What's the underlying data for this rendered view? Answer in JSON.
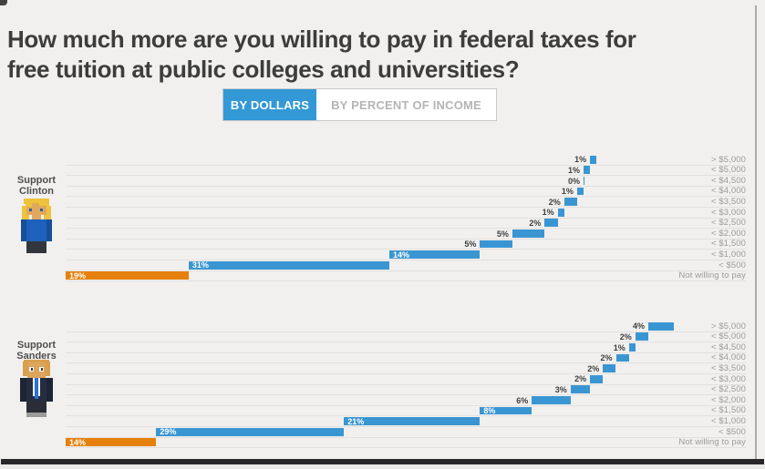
{
  "page": {
    "title": "How much more are you willing to pay in federal taxes for free tuition at public colleges and universities?",
    "title_lines": [
      "How much more are you willing to pay in federal taxes for",
      "free tuition at public colleges and universities?"
    ]
  },
  "toggle": {
    "by_dollars_label": "BY DOLLARS",
    "by_percent_label": "BY PERCENT OF INCOME",
    "active": "BY DOLLARS"
  },
  "colors": {
    "background": "#f1f0ee",
    "bar_blue": "#3a96d2",
    "bar_orange": "#e6810d",
    "toggle_blue": "#3399d6",
    "gridline": "#e2e1df",
    "category_label": "#9b9b9b",
    "title_text": "#3d3d3d",
    "footer_bar": "#28282a"
  },
  "chart_data": {
    "type": "bar",
    "subtype": "horizontal-waterfall",
    "title": "How much more are you willing to pay in federal taxes for free tuition at public colleges and universities?",
    "value_suffix": "%",
    "xlim": [
      0,
      105
    ],
    "grid": true,
    "legend_position": "left",
    "highlight_category": "Not willing to pay",
    "categories": [
      "> $5,000",
      "< $5,000",
      "< $4,500",
      "< $4,000",
      "< $3,500",
      "< $3,000",
      "< $2,500",
      "< $2,000",
      "< $1,500",
      "< $1,000",
      "< $500",
      "Not willing to pay"
    ],
    "series": [
      {
        "name": "Support Clinton",
        "label_lines": [
          "Support",
          "Clinton"
        ],
        "icon": "clinton-pixel-avatar",
        "values": [
          1,
          1,
          0,
          1,
          2,
          1,
          2,
          5,
          5,
          14,
          31,
          19
        ]
      },
      {
        "name": "Support Sanders",
        "label_lines": [
          "Support",
          "Sanders"
        ],
        "icon": "sanders-pixel-avatar",
        "values": [
          4,
          2,
          1,
          2,
          2,
          2,
          3,
          6,
          8,
          21,
          29,
          14
        ]
      }
    ]
  }
}
